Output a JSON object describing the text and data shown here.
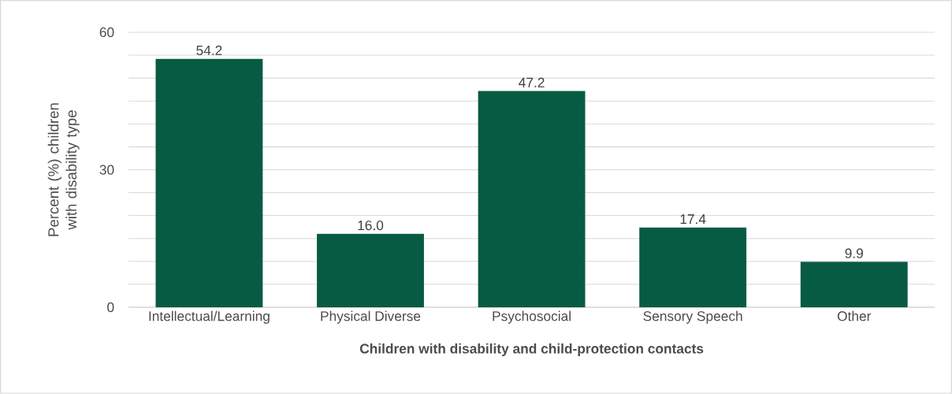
{
  "chart_data": {
    "type": "bar",
    "xlabel": "Children with disability and child-protection contacts",
    "ylabel": "Percent (%) children with disability type",
    "categories": [
      "Intellectual/Learning",
      "Physical Diverse",
      "Psychosocial",
      "Sensory Speech",
      "Other"
    ],
    "values": [
      54.2,
      16.0,
      47.2,
      17.4,
      9.9
    ],
    "value_labels": [
      "54.2",
      "16.0",
      "47.2",
      "17.4",
      "9.9"
    ],
    "color": "#075b42",
    "ylim": [
      0,
      60
    ],
    "yticks": [
      0,
      {
        "value": 5,
        "label": null
      },
      {
        "value": 10,
        "label": null
      },
      {
        "value": 15,
        "label": null
      },
      {
        "value": 20,
        "label": null
      },
      {
        "value": 25,
        "label": null
      },
      30,
      {
        "value": 35,
        "label": null
      },
      {
        "value": 40,
        "label": null
      },
      {
        "value": 45,
        "label": null
      },
      {
        "value": 50,
        "label": null
      },
      {
        "value": 55,
        "label": null
      },
      60
    ],
    "grid": "y"
  }
}
